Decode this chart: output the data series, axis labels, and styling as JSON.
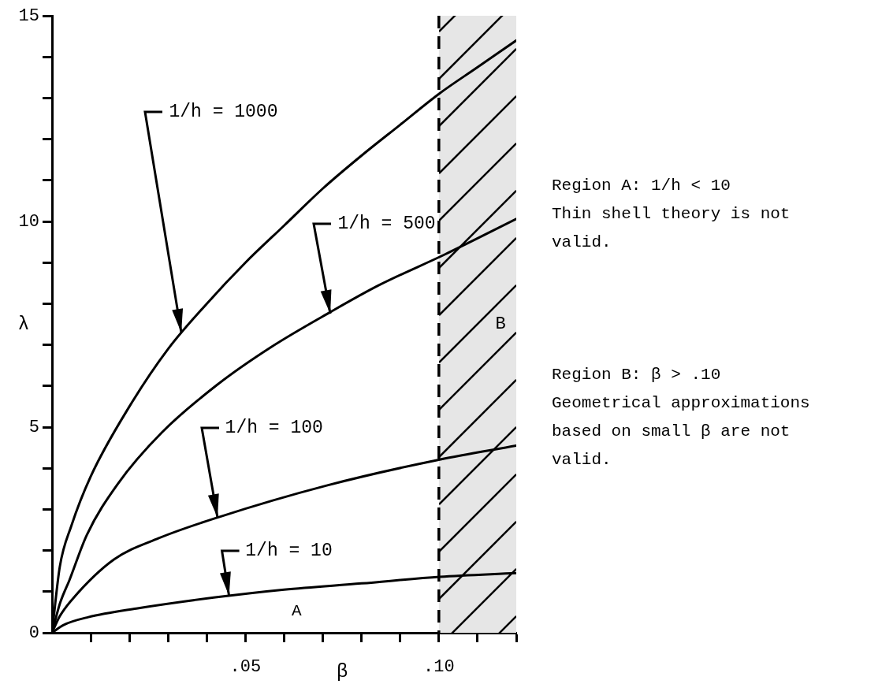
{
  "chart_data": {
    "type": "line",
    "xlabel": "β",
    "ylabel": "λ",
    "xlim": [
      0,
      0.12
    ],
    "ylim": [
      0,
      15
    ],
    "xticks": [
      {
        "value": 0.01,
        "label": null
      },
      {
        "value": 0.02,
        "label": null
      },
      {
        "value": 0.03,
        "label": null
      },
      {
        "value": 0.04,
        "label": null
      },
      {
        "value": 0.05,
        "label": ".05"
      },
      {
        "value": 0.06,
        "label": null
      },
      {
        "value": 0.07,
        "label": null
      },
      {
        "value": 0.08,
        "label": null
      },
      {
        "value": 0.09,
        "label": null
      },
      {
        "value": 0.1,
        "label": ".10"
      },
      {
        "value": 0.11,
        "label": null
      },
      {
        "value": 0.12,
        "label": null
      }
    ],
    "yticks": [
      0,
      {
        "value": 1,
        "label": null
      },
      {
        "value": 2,
        "label": null
      },
      {
        "value": 3,
        "label": null
      },
      {
        "value": 4,
        "label": null
      },
      5,
      {
        "value": 6,
        "label": null
      },
      {
        "value": 7,
        "label": null
      },
      {
        "value": 8,
        "label": null
      },
      {
        "value": 9,
        "label": null
      },
      10,
      {
        "value": 11,
        "label": null
      },
      {
        "value": 12,
        "label": null
      },
      {
        "value": 13,
        "label": null
      },
      {
        "value": 14,
        "label": null
      },
      15
    ],
    "marker": "none",
    "line_style": "solid",
    "grid": false,
    "legend": false,
    "series": [
      {
        "color": "#000000",
        "x": [
          0,
          0.002,
          0.005,
          0.01,
          0.02,
          0.03,
          0.04,
          0.05,
          0.06,
          0.07,
          0.08,
          0.09,
          0.1,
          0.11,
          0.12
        ],
        "values": [
          0,
          1.6,
          2.6,
          3.8,
          5.5,
          6.9,
          8,
          9,
          9.9,
          10.8,
          11.6,
          12.35,
          13.1,
          13.75,
          14.4
        ]
      },
      {
        "color": "#000000",
        "x": [
          0,
          0.002,
          0.0045,
          0.009,
          0.017,
          0.0284,
          0.0427,
          0.0567,
          0.072,
          0.0845,
          0.1016,
          0.12
        ],
        "values": [
          0,
          0.7,
          1.28,
          2.38,
          3.62,
          4.87,
          6.03,
          6.95,
          7.8,
          8.45,
          9.2,
          10.06
        ]
      },
      {
        "color": "#000000",
        "x": [
          0,
          0.002,
          0.0053,
          0.016,
          0.0276,
          0.0427,
          0.071,
          0.1002,
          0.12
        ],
        "values": [
          0,
          0.4,
          0.82,
          1.78,
          2.3,
          2.8,
          3.58,
          4.21,
          4.55
        ]
      },
      {
        "color": "#000000",
        "x": [
          0,
          0.003,
          0.0094,
          0.0218,
          0.0422,
          0.06,
          0.08,
          0.1002,
          0.12
        ],
        "values": [
          0,
          0.19,
          0.38,
          0.59,
          0.86,
          1.05,
          1.2,
          1.36,
          1.45
        ]
      }
    ],
    "ref_lines": [
      {
        "axis": "x",
        "value": 0.1,
        "line_style": "dashed",
        "color": "#000000"
      }
    ],
    "bands": [
      {
        "axis": "x",
        "from": 0.1,
        "to": 0.12,
        "label": "B",
        "color": "#e6e6e6"
      }
    ],
    "annotations": [
      {
        "text": "1/h = 1000",
        "x": 0.0335,
        "y": 7.3
      },
      {
        "text": "1/h = 500",
        "x": 0.072,
        "y": 7.76
      },
      {
        "text": "1/h = 100",
        "x": 0.0427,
        "y": 2.8
      },
      {
        "text": "1/h = 10",
        "x": 0.0457,
        "y": 0.9
      },
      "A",
      "Region A:  1/h < 10\nThin shell theory is not\nvalid.",
      "Region B:  β > .10\nGeometrical approximations\nbased on small β are not\nvalid."
    ]
  }
}
